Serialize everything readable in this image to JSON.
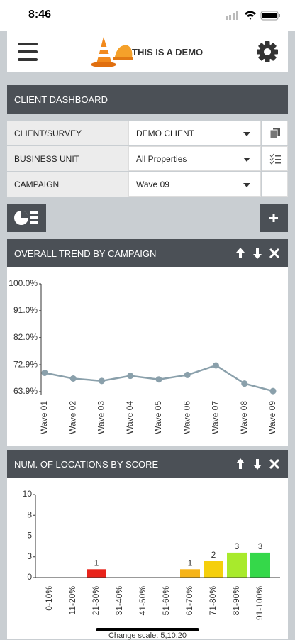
{
  "status_bar": {
    "time": "8:46"
  },
  "header": {
    "title": "THIS IS A DEMO"
  },
  "dashboard": {
    "title": "CLIENT DASHBOARD"
  },
  "form": {
    "rows": [
      {
        "label": "CLIENT/SURVEY",
        "value": "DEMO CLIENT"
      },
      {
        "label": "BUSINESS UNIT",
        "value": "All Properties"
      },
      {
        "label": "CAMPAIGN",
        "value": "Wave 09"
      }
    ]
  },
  "chart_data": [
    {
      "type": "line",
      "title": "OVERALL TREND BY CAMPAIGN",
      "categories": [
        "Wave 01",
        "Wave 02",
        "Wave 03",
        "Wave 04",
        "Wave 05",
        "Wave 06",
        "Wave 07",
        "Wave 08",
        "Wave 09"
      ],
      "values": [
        70.2,
        68.3,
        67.5,
        69.2,
        68.0,
        69.5,
        72.7,
        66.6,
        64.1
      ],
      "color": "#8aa0ab",
      "ylim": [
        63.9,
        100
      ],
      "yticks": [
        {
          "value": 63.9,
          "label": "63.9%"
        },
        {
          "value": 72.9,
          "label": "72.9%"
        },
        {
          "value": 82.0,
          "label": "82.0%"
        },
        {
          "value": 91.0,
          "label": "91.0%"
        },
        {
          "value": 100.0,
          "label": "100.0%"
        }
      ],
      "grid": false
    },
    {
      "type": "bar",
      "title": "NUM. OF LOCATIONS BY SCORE",
      "categories": [
        "0-10%",
        "11-20%",
        "21-30%",
        "31-40%",
        "41-50%",
        "51-60%",
        "61-70%",
        "71-80%",
        "81-90%",
        "91-100%"
      ],
      "values": [
        0,
        0,
        1,
        0,
        0,
        0,
        1,
        2,
        3,
        3
      ],
      "colors": [
        null,
        null,
        "#e8231a",
        null,
        null,
        null,
        "#f6b418",
        "#f5cf0c",
        "#a8ea2c",
        "#35d84a"
      ],
      "ylim": [
        0,
        10
      ],
      "yticks": [
        0,
        {
          "value": 2.5,
          "label": "3"
        },
        5,
        {
          "value": 7.5,
          "label": "8"
        },
        10
      ],
      "grid": false
    }
  ],
  "footer": {
    "text": "Change scale: 5,10,20"
  }
}
